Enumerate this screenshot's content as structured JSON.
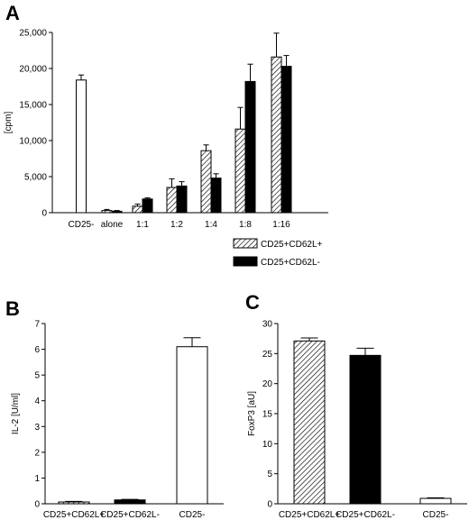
{
  "chart_data": [
    {
      "panel": "A",
      "type": "bar",
      "ylabel": "[cpm]",
      "ylim": [
        0,
        25000
      ],
      "yticks": [
        "0",
        "5,000",
        "10,000",
        "15,000",
        "20,000",
        "25,000"
      ],
      "yticks_values": [
        0,
        5000,
        10000,
        15000,
        20000,
        25000
      ],
      "categories": [
        "CD25-",
        "alone",
        "1:1",
        "1:2",
        "1:4",
        "1:8",
        "1:16"
      ],
      "groups": [
        {
          "category": "CD25-",
          "bars": [
            {
              "series": "CD25-",
              "value": 18400,
              "error": 700
            }
          ]
        },
        {
          "category": "alone",
          "bars": [
            {
              "series": "CD25+CD62L+",
              "value": 300,
              "error": 150
            },
            {
              "series": "CD25+CD62L-",
              "value": 200,
              "error": 100
            }
          ]
        },
        {
          "category": "1:1",
          "bars": [
            {
              "series": "CD25+CD62L+",
              "value": 900,
              "error": 300
            },
            {
              "series": "CD25+CD62L-",
              "value": 1900,
              "error": 150
            }
          ]
        },
        {
          "category": "1:2",
          "bars": [
            {
              "series": "CD25+CD62L+",
              "value": 3500,
              "error": 1200
            },
            {
              "series": "CD25+CD62L-",
              "value": 3700,
              "error": 600
            }
          ]
        },
        {
          "category": "1:4",
          "bars": [
            {
              "series": "CD25+CD62L+",
              "value": 8600,
              "error": 800
            },
            {
              "series": "CD25+CD62L-",
              "value": 4800,
              "error": 600
            }
          ]
        },
        {
          "category": "1:8",
          "bars": [
            {
              "series": "CD25+CD62L+",
              "value": 11600,
              "error": 3000
            },
            {
              "series": "CD25+CD62L-",
              "value": 18200,
              "error": 2400
            }
          ]
        },
        {
          "category": "1:16",
          "bars": [
            {
              "series": "CD25+CD62L+",
              "value": 21600,
              "error": 3300
            },
            {
              "series": "CD25+CD62L-",
              "value": 20300,
              "error": 1500
            }
          ]
        }
      ],
      "legend": {
        "placement": "bottom-right",
        "entries": [
          {
            "label": "CD25+CD62L+",
            "style": "hatched"
          },
          {
            "label": "CD25+CD62L-",
            "style": "black"
          }
        ]
      }
    },
    {
      "panel": "B",
      "type": "bar",
      "ylabel": "IL-2 [U/ml]",
      "ylim": [
        0,
        7
      ],
      "yticks": [
        "0",
        "1",
        "2",
        "3",
        "4",
        "5",
        "6",
        "7"
      ],
      "yticks_values": [
        0,
        1,
        2,
        3,
        4,
        5,
        6,
        7
      ],
      "categories": [
        "CD25+CD62L+",
        "CD25+CD62L-",
        "CD25-"
      ],
      "bars": [
        {
          "category": "CD25+CD62L+",
          "value": 0.07,
          "error": 0.02,
          "style": "hatched"
        },
        {
          "category": "CD25+CD62L-",
          "value": 0.15,
          "error": 0.02,
          "style": "black"
        },
        {
          "category": "CD25-",
          "value": 6.1,
          "error": 0.35,
          "style": "white"
        }
      ]
    },
    {
      "panel": "C",
      "type": "bar",
      "ylabel": "FoxP3 [aU]",
      "ylim": [
        0,
        30
      ],
      "yticks": [
        "0",
        "5",
        "10",
        "15",
        "20",
        "25",
        "30"
      ],
      "yticks_values": [
        0,
        5,
        10,
        15,
        20,
        25,
        30
      ],
      "categories": [
        "CD25+CD62L+",
        "CD25+CD62L-",
        "CD25-"
      ],
      "bars": [
        {
          "category": "CD25+CD62L+",
          "value": 27.1,
          "error": 0.5,
          "style": "hatched"
        },
        {
          "category": "CD25+CD62L-",
          "value": 24.7,
          "error": 1.2,
          "style": "black"
        },
        {
          "category": "CD25-",
          "value": 0.9,
          "error": 0.1,
          "style": "white"
        }
      ]
    }
  ]
}
